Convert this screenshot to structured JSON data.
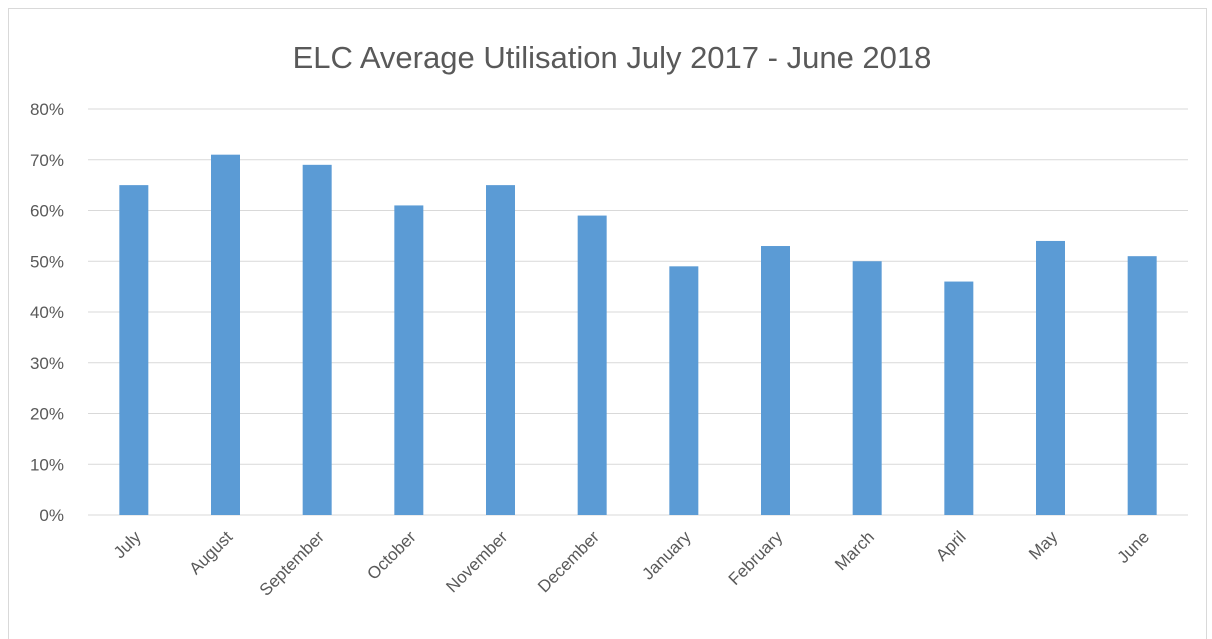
{
  "chart_data": {
    "type": "bar",
    "title": "ELC Average Utilisation July 2017 - June 2018",
    "xlabel": "",
    "ylabel": "",
    "categories": [
      "July",
      "August",
      "September",
      "October",
      "November",
      "December",
      "January",
      "February",
      "March",
      "April",
      "May",
      "June"
    ],
    "values": [
      65,
      71,
      69,
      61,
      65,
      59,
      49,
      53,
      50,
      46,
      54,
      51
    ],
    "value_unit": "%",
    "ylim": [
      0,
      80
    ],
    "yticks": [
      "0%",
      "10%",
      "20%",
      "30%",
      "40%",
      "50%",
      "60%",
      "70%",
      "80%"
    ],
    "grid": true,
    "legend": "none",
    "bar_color": "#5b9bd5"
  }
}
